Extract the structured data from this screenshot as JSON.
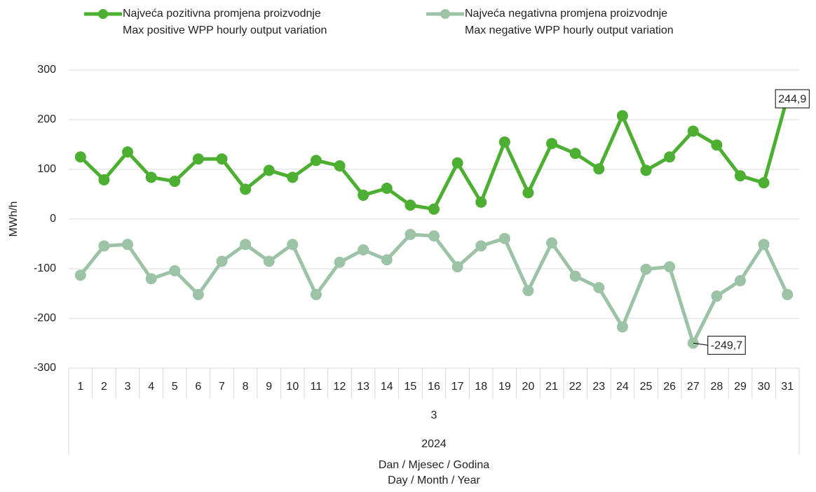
{
  "chart_data": {
    "type": "line",
    "categories": [
      "1",
      "2",
      "3",
      "4",
      "5",
      "6",
      "7",
      "8",
      "9",
      "10",
      "11",
      "12",
      "13",
      "14",
      "15",
      "16",
      "17",
      "18",
      "19",
      "20",
      "21",
      "22",
      "23",
      "24",
      "25",
      "26",
      "27",
      "28",
      "29",
      "30",
      "31"
    ],
    "month": "3",
    "year": "2024",
    "x_label": "Dan / Mjesec / Godina\nDay / Month / Year",
    "y_label": "MWh/h",
    "ylim": [
      -300,
      300
    ],
    "yticks": [
      -300,
      -200,
      -100,
      0,
      100,
      200,
      300
    ],
    "grid": true,
    "series": [
      {
        "name": "Najveća pozitivna promjena proizvodnje\nMax positive WPP hourly output variation",
        "color": "#4caf32",
        "values": [
          125,
          79,
          135,
          84,
          76,
          121,
          121,
          60,
          98,
          84,
          118,
          107,
          48,
          62,
          28,
          20,
          113,
          34,
          155,
          53,
          152,
          132,
          101,
          208,
          98,
          125,
          177,
          149,
          87,
          73,
          244.9
        ],
        "value_labels": [
          null,
          null,
          null,
          null,
          null,
          null,
          null,
          null,
          null,
          null,
          null,
          null,
          null,
          null,
          null,
          null,
          null,
          null,
          null,
          null,
          null,
          null,
          null,
          null,
          null,
          null,
          null,
          null,
          null,
          null,
          "244,9"
        ]
      },
      {
        "name": "Najveća negativna promjena proizvodnje\nMax negative WPP hourly output variation",
        "color": "#9dc3a7",
        "values": [
          -113,
          -54,
          -51,
          -120,
          -104,
          -152,
          -85,
          -51,
          -85,
          -51,
          -152,
          -87,
          -62,
          -82,
          -31,
          -34,
          -96,
          -54,
          -39,
          -144,
          -48,
          -115,
          -138,
          -217,
          -101,
          -96,
          -249.7,
          -155,
          -124,
          -51,
          -152
        ],
        "value_labels": [
          null,
          null,
          null,
          null,
          null,
          null,
          null,
          null,
          null,
          null,
          null,
          null,
          null,
          null,
          null,
          null,
          null,
          null,
          null,
          null,
          null,
          null,
          null,
          null,
          null,
          null,
          "-249,7",
          null,
          null,
          null,
          null
        ]
      }
    ]
  }
}
